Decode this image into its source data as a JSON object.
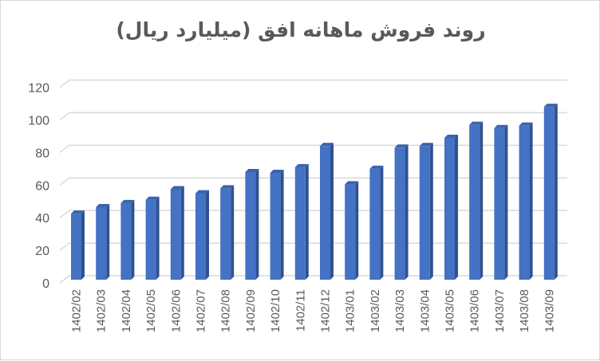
{
  "chart_data": {
    "type": "bar",
    "style": "3d-column",
    "title": "روند فروش ماهانه افق (میلیارد ریال)",
    "xlabel": "",
    "ylabel": "",
    "categories": [
      "1402/02",
      "1402/03",
      "1402/04",
      "1402/05",
      "1402/06",
      "1402/07",
      "1402/08",
      "1402/09",
      "1402/10",
      "1402/11",
      "1402/12",
      "1403/01",
      "1403/02",
      "1403/03",
      "1403/04",
      "1403/05",
      "1403/06",
      "1403/07",
      "1403/08",
      "1403/09"
    ],
    "values": [
      40.5,
      44.5,
      47,
      49,
      55.5,
      53,
      56,
      66,
      65.5,
      69,
      82,
      58.5,
      68,
      81,
      82,
      87,
      95,
      93,
      94.5,
      106
    ],
    "ylim": [
      0,
      120
    ],
    "yticks": [
      0,
      20,
      40,
      60,
      80,
      100,
      120
    ],
    "grid": true,
    "legend": null,
    "colors": {
      "bar_front": "#4472C4",
      "bar_side": "#2F528F",
      "bar_top": "#3B62AE",
      "grid": "#d9d9d9",
      "text": "#595959"
    }
  }
}
